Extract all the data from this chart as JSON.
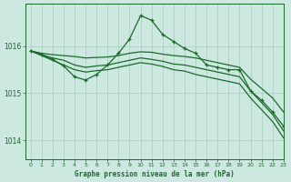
{
  "title": "Graphe pression niveau de la mer (hPa)",
  "background_color": "#cce8e0",
  "grid_color": "#aaccbb",
  "line_color": "#1a6b2a",
  "xlim": [
    -0.5,
    23
  ],
  "ylim": [
    1013.6,
    1016.9
  ],
  "yticks": [
    1014,
    1015,
    1016
  ],
  "xticks": [
    0,
    1,
    2,
    3,
    4,
    5,
    6,
    7,
    8,
    9,
    10,
    11,
    12,
    13,
    14,
    15,
    16,
    17,
    18,
    19,
    20,
    21,
    22,
    23
  ],
  "series": [
    {
      "x": [
        0,
        1,
        2,
        3,
        4,
        5,
        6,
        7,
        8,
        9,
        10,
        11,
        12,
        13,
        14,
        15,
        16,
        17,
        18,
        19,
        20,
        21,
        22,
        23
      ],
      "y": [
        1015.9,
        1015.85,
        1015.82,
        1015.8,
        1015.78,
        1015.75,
        1015.76,
        1015.77,
        1015.8,
        1015.85,
        1015.88,
        1015.87,
        1015.83,
        1015.8,
        1015.78,
        1015.75,
        1015.7,
        1015.65,
        1015.6,
        1015.55,
        1015.3,
        1015.1,
        1014.9,
        1014.6
      ],
      "marker": false,
      "linewidth": 0.9
    },
    {
      "x": [
        0,
        1,
        2,
        3,
        4,
        5,
        6,
        7,
        8,
        9,
        10,
        11,
        12,
        13,
        14,
        15,
        16,
        17,
        18,
        19,
        20,
        21,
        22,
        23
      ],
      "y": [
        1015.9,
        1015.82,
        1015.75,
        1015.7,
        1015.6,
        1015.55,
        1015.58,
        1015.6,
        1015.65,
        1015.7,
        1015.75,
        1015.72,
        1015.68,
        1015.62,
        1015.6,
        1015.55,
        1015.5,
        1015.45,
        1015.4,
        1015.35,
        1015.05,
        1014.8,
        1014.55,
        1014.2
      ],
      "marker": false,
      "linewidth": 0.9
    },
    {
      "x": [
        0,
        1,
        2,
        3,
        4,
        5,
        6,
        7,
        8,
        9,
        10,
        11,
        12,
        13,
        14,
        15,
        16,
        17,
        18,
        19,
        20,
        21,
        22,
        23
      ],
      "y": [
        1015.9,
        1015.8,
        1015.7,
        1015.6,
        1015.5,
        1015.45,
        1015.48,
        1015.5,
        1015.55,
        1015.6,
        1015.65,
        1015.62,
        1015.57,
        1015.5,
        1015.47,
        1015.4,
        1015.35,
        1015.3,
        1015.25,
        1015.2,
        1014.9,
        1014.65,
        1014.4,
        1014.05
      ],
      "marker": false,
      "linewidth": 0.9
    },
    {
      "x": [
        0,
        1,
        2,
        3,
        4,
        5,
        6,
        7,
        8,
        9,
        10,
        11,
        12,
        13,
        14,
        15,
        16,
        17,
        18,
        19,
        20,
        21,
        22,
        23
      ],
      "y": [
        1015.9,
        1015.82,
        1015.72,
        1015.58,
        1015.35,
        1015.28,
        1015.4,
        1015.6,
        1015.85,
        1016.15,
        1016.65,
        1016.55,
        1016.25,
        1016.1,
        1015.95,
        1015.85,
        1015.6,
        1015.55,
        1015.5,
        1015.5,
        1015.05,
        1014.85,
        1014.6,
        1014.3
      ],
      "marker": true,
      "linewidth": 0.9
    }
  ]
}
